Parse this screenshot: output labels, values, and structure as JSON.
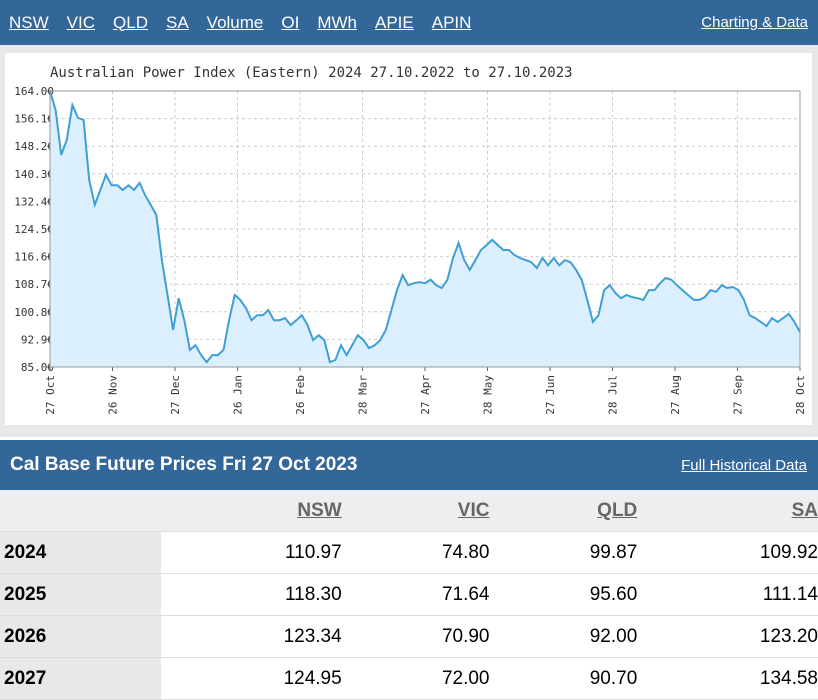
{
  "nav": {
    "links": [
      "NSW",
      "VIC",
      "QLD",
      "SA",
      "Volume",
      "OI",
      "MWh",
      "APIE",
      "APIN"
    ],
    "right": "Charting & Data"
  },
  "chart_data": {
    "type": "line",
    "title": "Australian Power Index (Eastern) 2024 27.10.2022 to 27.10.2023",
    "x_labels": [
      "27 Oct",
      "26 Nov",
      "27 Dec",
      "26 Jan",
      "26 Feb",
      "28 Mar",
      "27 Apr",
      "28 May",
      "27 Jun",
      "28 Jul",
      "27 Aug",
      "27 Sep",
      "28 Oct"
    ],
    "color": "#3e9fd4",
    "fill": "#dcefff",
    "grid": true,
    "ylim": [
      85,
      164
    ],
    "yticks": [
      {
        "value": 85,
        "label": "85.00"
      },
      {
        "value": 92.9,
        "label": "92.90"
      },
      {
        "value": 100.8,
        "label": "100.80"
      },
      {
        "value": 108.7,
        "label": "108.70"
      },
      {
        "value": 116.6,
        "label": "116.60"
      },
      {
        "value": 124.5,
        "label": "124.50"
      },
      {
        "value": 132.4,
        "label": "132.40"
      },
      {
        "value": 140.3,
        "label": "140.30"
      },
      {
        "value": 148.2,
        "label": "148.20"
      },
      {
        "value": 156.1,
        "label": "156.10"
      },
      {
        "value": 164,
        "label": "164.00"
      }
    ],
    "values": [
      164,
      158.6,
      145.7,
      150,
      160,
      156.3,
      155.7,
      138.5,
      131.4,
      135.7,
      140,
      137,
      137,
      135.7,
      137,
      135.7,
      137.7,
      134.2,
      131.4,
      128.5,
      115.6,
      105.6,
      95.6,
      104.7,
      98.4,
      89.9,
      91.2,
      88.4,
      86.4,
      88.4,
      88.4,
      89.9,
      98.4,
      105.6,
      104.2,
      101.9,
      98.4,
      99.8,
      99.8,
      101.3,
      98.4,
      98.4,
      99,
      97,
      98.4,
      99.8,
      97,
      92.7,
      94.1,
      92.7,
      86.4,
      87,
      91.2,
      88.4,
      91.2,
      94.1,
      92.7,
      90.4,
      91.2,
      92.7,
      95.6,
      101.3,
      107,
      111.3,
      108.4,
      109,
      109.3,
      109,
      110,
      108.4,
      107.6,
      110,
      116.2,
      120.5,
      115.6,
      112.8,
      115.6,
      118.5,
      119.9,
      121.4,
      119.9,
      118.5,
      118.5,
      117,
      116.2,
      115.6,
      115,
      113.3,
      116.2,
      114.1,
      116.2,
      114.1,
      115.6,
      115,
      112.8,
      110,
      104.2,
      97.9,
      99.8,
      107,
      108.4,
      106.2,
      104.7,
      105.6,
      105,
      104.7,
      104.2,
      107,
      107,
      109,
      110.5,
      110,
      108.4,
      107,
      105.6,
      104.2,
      104.2,
      105,
      107,
      106.5,
      108.4,
      107.6,
      107.9,
      107,
      104.2,
      99.8,
      99,
      97.9,
      96.7,
      99,
      97.9,
      99,
      100.2,
      97.9,
      95
    ]
  },
  "table": {
    "title": "Cal Base Future Prices Fri 27 Oct 2023",
    "link": "Full Historical Data",
    "columns": [
      "NSW",
      "VIC",
      "QLD",
      "SA"
    ],
    "rows": [
      {
        "year": "2024",
        "values": [
          "110.97",
          "74.80",
          "99.87",
          "109.92"
        ]
      },
      {
        "year": "2025",
        "values": [
          "118.30",
          "71.64",
          "95.60",
          "111.14"
        ]
      },
      {
        "year": "2026",
        "values": [
          "123.34",
          "70.90",
          "92.00",
          "123.20"
        ]
      },
      {
        "year": "2027",
        "values": [
          "124.95",
          "72.00",
          "90.70",
          "134.58"
        ]
      }
    ]
  }
}
